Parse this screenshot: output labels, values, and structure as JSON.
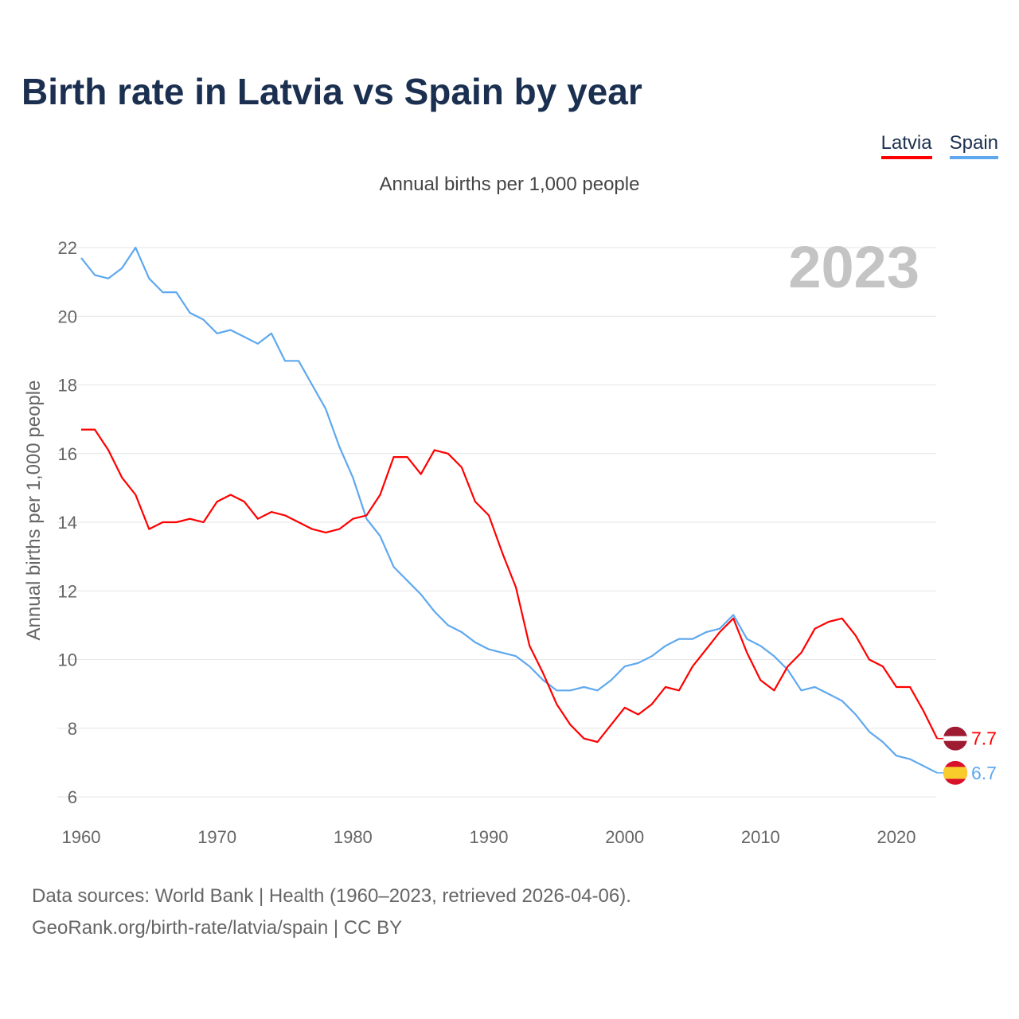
{
  "title": "Birth rate in Latvia vs Spain by year",
  "subtitle": "Annual births per 1,000 people",
  "year_label": "2023",
  "footer": {
    "line1": "Data sources: World Bank | Health (1960–2023, retrieved 2026-04-06).",
    "line2": "GeoRank.org/birth-rate/latvia/spain | CC BY"
  },
  "chart_data": {
    "type": "line",
    "title": "Birth rate in Latvia vs Spain by year",
    "xlabel": "",
    "ylabel": "Annual births per 1,000 people",
    "xlim": [
      1960,
      2023
    ],
    "ylim": [
      6,
      22
    ],
    "xticks": [
      "1960",
      "1970",
      "1980",
      "1990",
      "2000",
      "2010",
      "2020"
    ],
    "yticks": [
      "6",
      "8",
      "10",
      "12",
      "14",
      "16",
      "18",
      "20",
      "22"
    ],
    "grid": true,
    "legend_position": "top-right",
    "x_start": 1960,
    "series": [
      {
        "name": "Latvia",
        "color": "#ff0000",
        "end_label": "7.7",
        "flag": "latvia-flag",
        "values": [
          16.7,
          16.7,
          16.1,
          15.3,
          14.8,
          13.8,
          14.0,
          14.0,
          14.1,
          14.0,
          14.6,
          14.8,
          14.6,
          14.1,
          14.3,
          14.2,
          14.0,
          13.8,
          13.7,
          13.8,
          14.1,
          14.2,
          14.8,
          15.9,
          15.9,
          15.4,
          16.1,
          16.0,
          15.6,
          14.6,
          14.2,
          13.1,
          12.1,
          10.4,
          9.6,
          8.7,
          8.1,
          7.7,
          7.6,
          8.1,
          8.6,
          8.4,
          8.7,
          9.2,
          9.1,
          9.8,
          10.3,
          10.8,
          11.2,
          10.2,
          9.4,
          9.1,
          9.8,
          10.2,
          10.9,
          11.1,
          11.2,
          10.7,
          10.0,
          9.8,
          9.2,
          9.2,
          8.5,
          7.7
        ]
      },
      {
        "name": "Spain",
        "color": "#5ea8ef",
        "end_label": "6.7",
        "flag": "spain-flag",
        "values": [
          21.7,
          21.2,
          21.1,
          21.4,
          22.0,
          21.1,
          20.7,
          20.7,
          20.1,
          19.9,
          19.5,
          19.6,
          19.4,
          19.2,
          19.5,
          18.7,
          18.7,
          18.0,
          17.3,
          16.2,
          15.3,
          14.1,
          13.6,
          12.7,
          12.3,
          11.9,
          11.4,
          11.0,
          10.8,
          10.5,
          10.3,
          10.2,
          10.1,
          9.8,
          9.4,
          9.1,
          9.1,
          9.2,
          9.1,
          9.4,
          9.8,
          9.9,
          10.1,
          10.4,
          10.6,
          10.6,
          10.8,
          10.9,
          11.3,
          10.6,
          10.4,
          10.1,
          9.7,
          9.1,
          9.2,
          9.0,
          8.8,
          8.4,
          7.9,
          7.6,
          7.2,
          7.1,
          6.9,
          6.7
        ]
      }
    ]
  }
}
